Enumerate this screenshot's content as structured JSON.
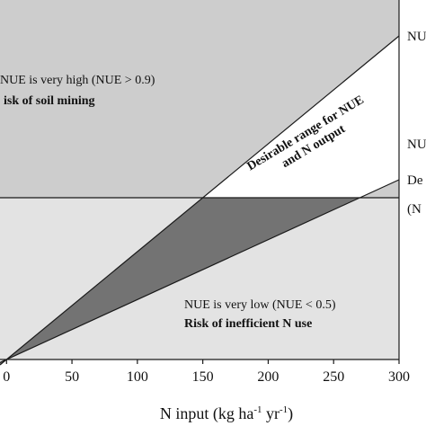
{
  "chart_data": {
    "type": "area",
    "xlabel": "N input (kg ha",
    "xlabel_sup1": "-1",
    "xlabel_mid": " yr",
    "xlabel_sup2": "-1",
    "xlabel_end": ")",
    "xlim": [
      -5,
      300
    ],
    "ylim": [
      0,
      300
    ],
    "x_ticks": [
      0,
      50,
      100,
      150,
      200,
      250,
      300
    ],
    "x_tick_labels": [
      "0",
      "50",
      "100",
      "150",
      "200",
      "250",
      "300"
    ],
    "desired_output_y": 135,
    "series": [
      {
        "name": "NUE",
        "slope": 0.9
      },
      {
        "name": "NUE",
        "slope": 0.5
      }
    ],
    "right_labels": [
      {
        "text": "NUE",
        "y": 270
      },
      {
        "text": "NUE",
        "y": 180
      },
      {
        "text": "De",
        "y": 150
      },
      {
        "text": "(N",
        "y": 126
      }
    ],
    "annotations": {
      "high_line1": "NUE is very high (NUE > 0.9)",
      "high_line2": "isk of soil mining",
      "desirable_line1": "Desirable range for NUE",
      "desirable_line2": "and N output",
      "low_line1": "NUE is very low (NUE < 0.5)",
      "low_line2": "Risk of inefficient N use"
    },
    "colors": {
      "upper_region": "#cdcdcd",
      "lower_region": "#e3e3e3",
      "desirable_region": "#ffffff",
      "inefficient_wedge": "#737373",
      "lines": "#1a1a1a"
    },
    "grid": false
  }
}
